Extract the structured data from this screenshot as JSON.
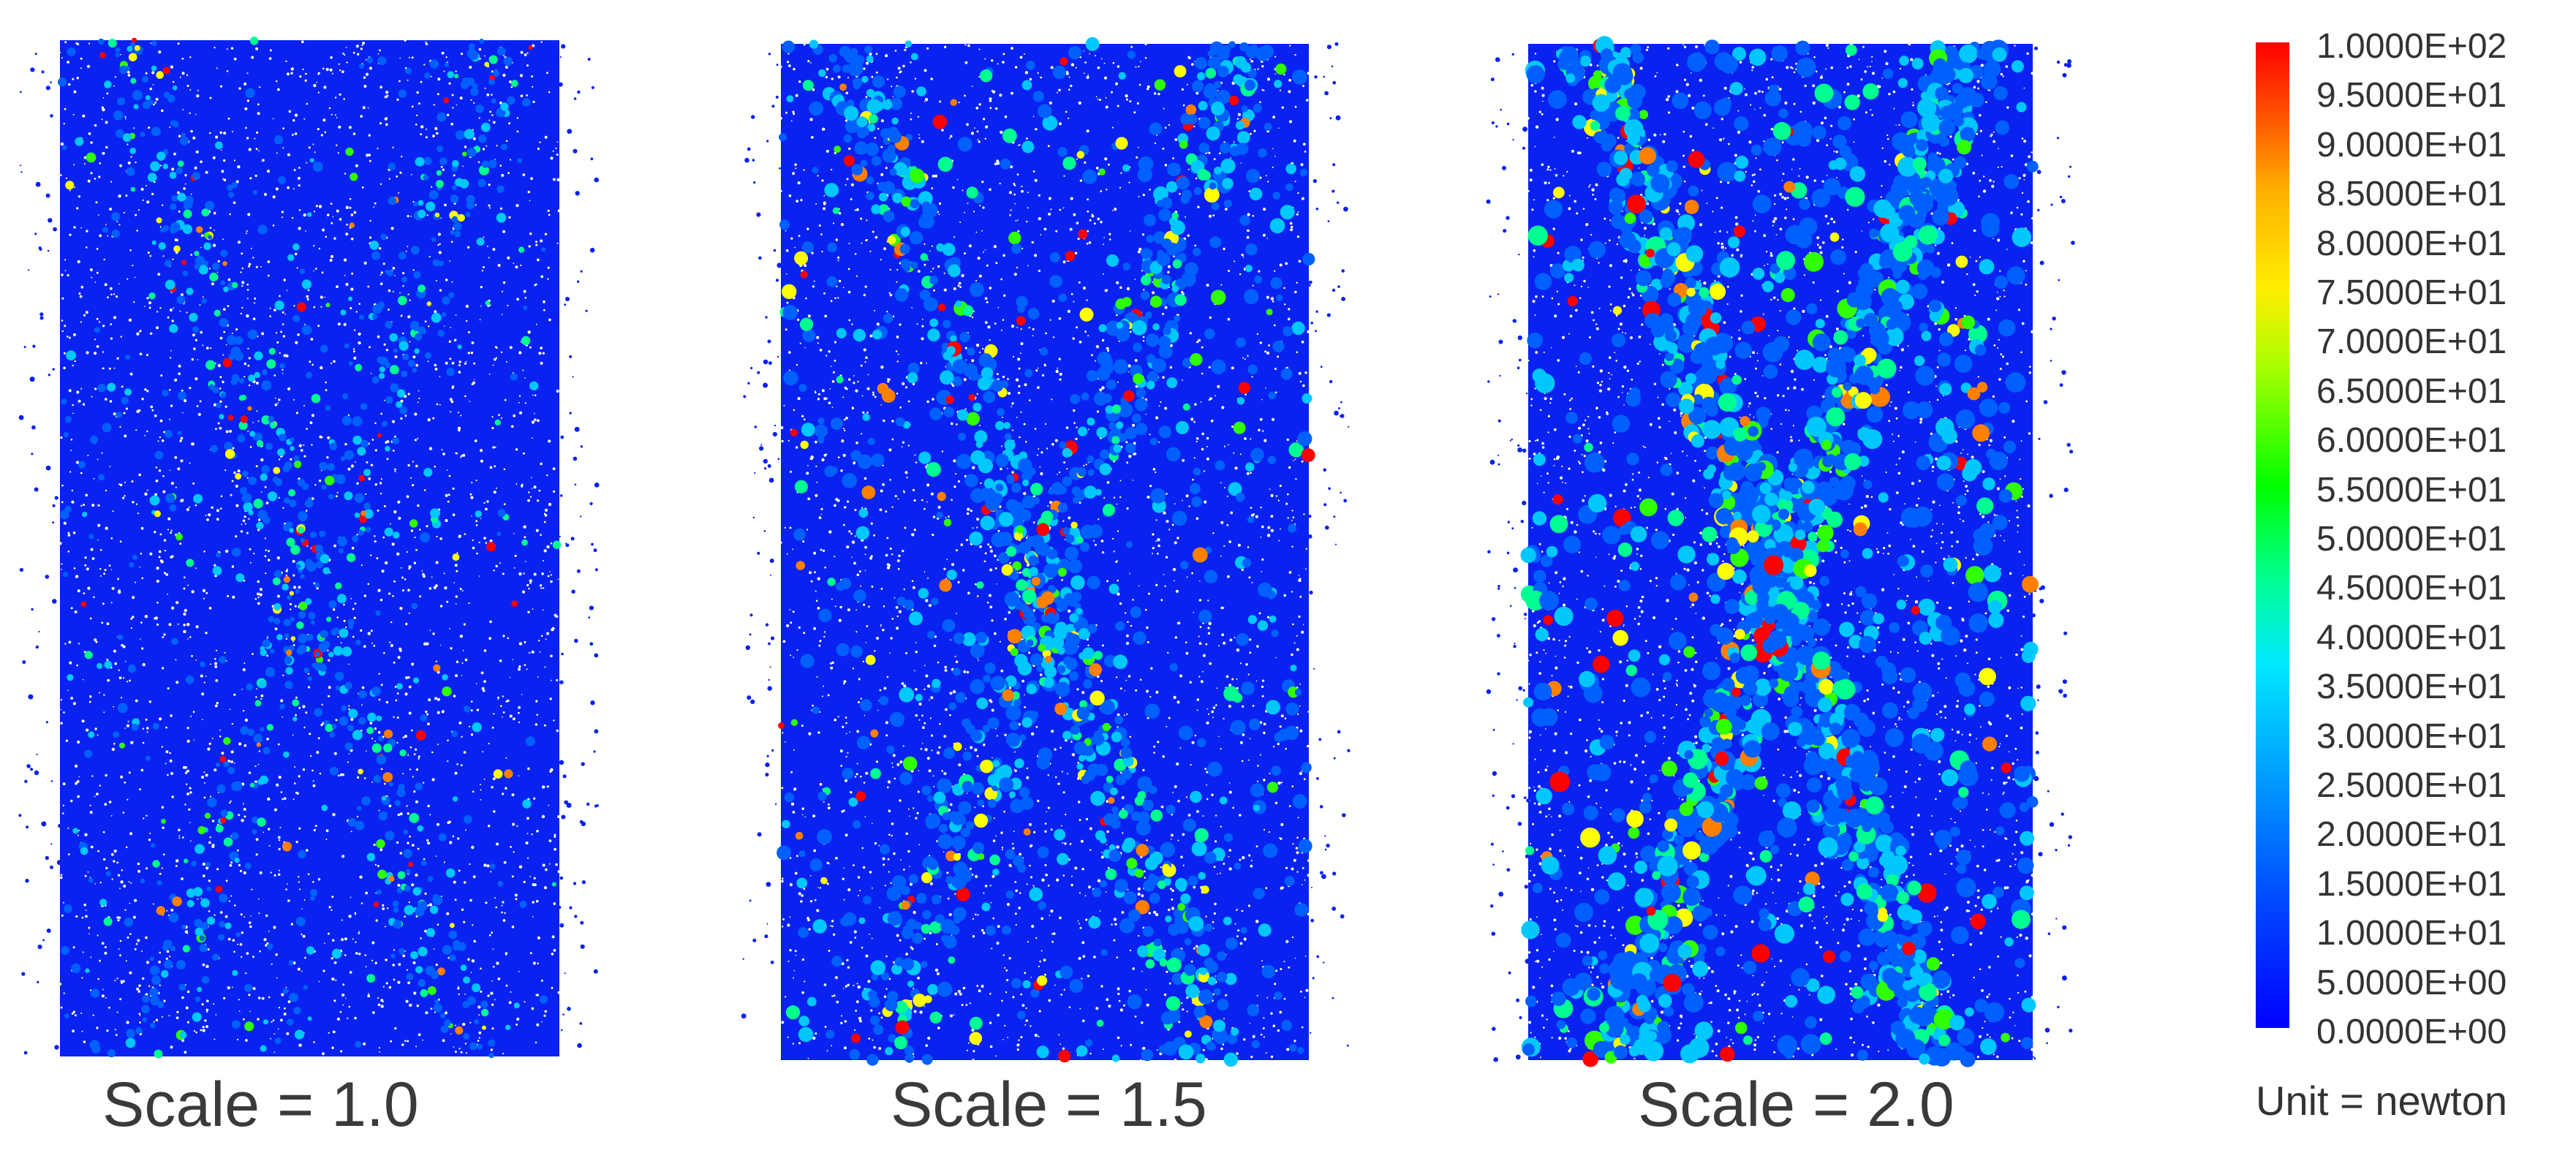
{
  "panels": [
    {
      "caption": "Scale = 1.0",
      "scale": 1.0
    },
    {
      "caption": "Scale = 1.5",
      "scale": 1.5
    },
    {
      "caption": "Scale = 2.0",
      "scale": 2.0
    }
  ],
  "legend": {
    "ticks": [
      "1.0000E+02",
      "9.5000E+01",
      "9.0000E+01",
      "8.5000E+01",
      "8.0000E+01",
      "7.5000E+01",
      "7.0000E+01",
      "6.5000E+01",
      "6.0000E+01",
      "5.5000E+01",
      "5.0000E+01",
      "4.5000E+01",
      "4.0000E+01",
      "3.5000E+01",
      "3.0000E+01",
      "2.5000E+01",
      "2.0000E+01",
      "1.5000E+01",
      "1.0000E+01",
      "5.0000E+00",
      "0.0000E+00"
    ],
    "unit": "Unit = newton",
    "colors": [
      "#0000ff",
      "#0060ff",
      "#00c8ff",
      "#00ff90",
      "#30ff00",
      "#ffff00",
      "#ff8000",
      "#ff0000"
    ]
  }
}
